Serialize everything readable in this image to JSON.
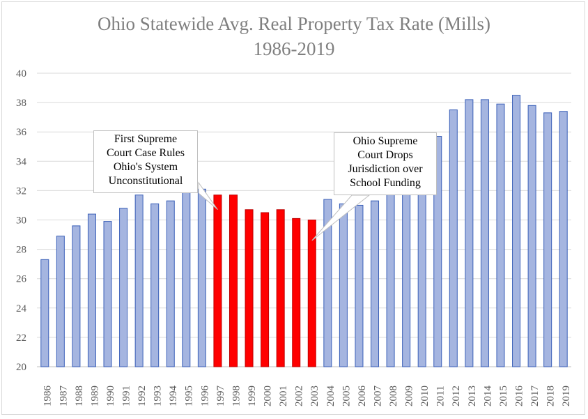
{
  "chart_data": {
    "type": "bar",
    "title": "Ohio Statewide Avg. Real Property Tax Rate (Mills)",
    "subtitle": "1986-2019",
    "categories": [
      "1986",
      "1987",
      "1988",
      "1989",
      "1990",
      "1991",
      "1992",
      "1993",
      "1994",
      "1995",
      "1996",
      "1997",
      "1998",
      "1999",
      "2000",
      "2001",
      "2002",
      "2003",
      "2004",
      "2005",
      "2006",
      "2007",
      "2008",
      "2009",
      "2010",
      "2011",
      "2012",
      "2013",
      "2014",
      "2015",
      "2016",
      "2017",
      "2018",
      "2019"
    ],
    "values": [
      27.3,
      28.9,
      29.6,
      30.4,
      29.9,
      30.8,
      31.7,
      31.1,
      31.3,
      31.9,
      32.1,
      31.7,
      31.7,
      30.7,
      30.5,
      30.7,
      30.1,
      30.0,
      31.4,
      31.1,
      31.0,
      31.3,
      32.0,
      32.2,
      32.5,
      35.7,
      37.5,
      38.2,
      38.2,
      37.9,
      38.5,
      37.8,
      37.3,
      37.4
    ],
    "highlighted": [
      "1997",
      "1998",
      "1999",
      "2000",
      "2001",
      "2002",
      "2003"
    ],
    "ylim": [
      20,
      40
    ],
    "yticks": [
      20,
      22,
      24,
      26,
      28,
      30,
      32,
      34,
      36,
      38,
      40
    ],
    "grid": true,
    "colors": {
      "bar": "#a5b5e0",
      "bar_stroke": "#3a5fb8",
      "highlight": "#ff0000",
      "highlight_stroke": "#c00000",
      "grid": "#d9d9d9",
      "title": "#7f7f7f"
    },
    "annotations": [
      {
        "lines": [
          "First Supreme",
          "Court Case Rules",
          "Ohio's System",
          "Unconstitutional"
        ],
        "points_to": "1997"
      },
      {
        "lines": [
          "Ohio Supreme",
          "Court Drops",
          "Jurisdiction over",
          "School Funding"
        ],
        "points_to": "2003"
      }
    ]
  }
}
